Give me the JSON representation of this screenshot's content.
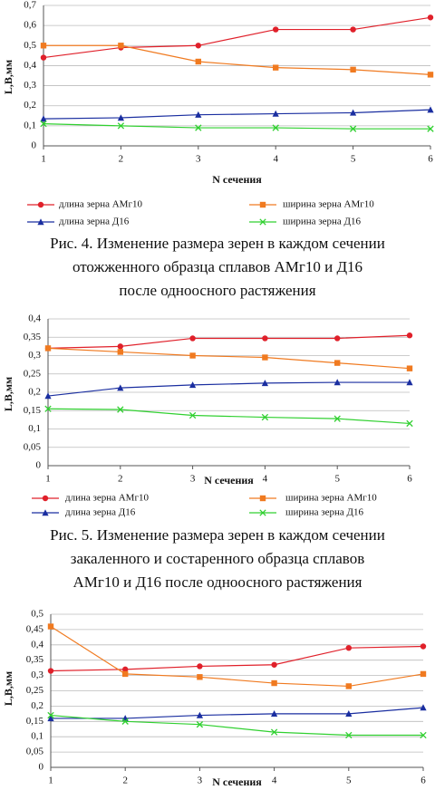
{
  "chart_data": [
    {
      "type": "line",
      "xlabel": "N сечения",
      "ylabel": "L,B,мм",
      "x": [
        1,
        2,
        3,
        4,
        5,
        6
      ],
      "xlim": [
        1,
        6
      ],
      "xticks": [
        1,
        2,
        3,
        4,
        5,
        6
      ],
      "ylim": [
        0,
        0.7
      ],
      "yticks": [
        0,
        {
          "value": 0.1,
          "label": "0,1"
        },
        {
          "value": 0.2,
          "label": "0,2"
        },
        {
          "value": 0.3,
          "label": "0,3"
        },
        {
          "value": 0.4,
          "label": "0,4"
        },
        {
          "value": 0.5,
          "label": "0,5"
        },
        {
          "value": 0.6,
          "label": "0,6"
        },
        {
          "value": 0.7,
          "label": "0,7"
        }
      ],
      "grid": true,
      "series": [
        {
          "name": "длина зерна АМг10",
          "color": "#e0202a",
          "marker": "circle",
          "values": [
            0.44,
            0.49,
            0.5,
            0.58,
            0.58,
            0.64
          ]
        },
        {
          "name": "ширина зерна АМг10",
          "color": "#f07a20",
          "marker": "square",
          "values": [
            0.5,
            0.5,
            0.42,
            0.39,
            0.38,
            0.355
          ]
        },
        {
          "name": "длина зерна Д16",
          "color": "#1a2ea0",
          "marker": "triangle",
          "values": [
            0.135,
            0.14,
            0.155,
            0.16,
            0.165,
            0.18
          ]
        },
        {
          "name": "ширина зерна Д16",
          "color": "#30d030",
          "marker": "x",
          "values": [
            0.11,
            0.1,
            0.09,
            0.09,
            0.085,
            0.085
          ]
        }
      ],
      "caption": [
        "Рис. 4. Изменение размера зерен в каждом сечении",
        "отожженного образца сплавов АМг10 и Д16",
        "после одноосного растяжения"
      ]
    },
    {
      "type": "line",
      "xlabel": "N сечения",
      "ylabel": "L,B,мм",
      "x": [
        1,
        2,
        3,
        4,
        5,
        6
      ],
      "xlim": [
        1,
        6
      ],
      "xticks": [
        1,
        2,
        3,
        4,
        5,
        6
      ],
      "ylim": [
        0,
        0.4
      ],
      "yticks": [
        0,
        {
          "value": 0.05,
          "label": "0,05"
        },
        {
          "value": 0.1,
          "label": "0,1"
        },
        {
          "value": 0.15,
          "label": "0,15"
        },
        {
          "value": 0.2,
          "label": "0,2"
        },
        {
          "value": 0.25,
          "label": "0,25"
        },
        {
          "value": 0.3,
          "label": "0,3"
        },
        {
          "value": 0.35,
          "label": "0,35"
        },
        {
          "value": 0.4,
          "label": "0,4"
        }
      ],
      "grid": true,
      "series": [
        {
          "name": "длина зерна АМг10",
          "color": "#e0202a",
          "marker": "circle",
          "values": [
            0.32,
            0.325,
            0.347,
            0.347,
            0.347,
            0.355
          ]
        },
        {
          "name": "ширина зерна АМг10",
          "color": "#f07a20",
          "marker": "square",
          "values": [
            0.32,
            0.31,
            0.3,
            0.295,
            0.28,
            0.265
          ]
        },
        {
          "name": "длина зерна Д16",
          "color": "#1a2ea0",
          "marker": "triangle",
          "values": [
            0.19,
            0.212,
            0.22,
            0.225,
            0.227,
            0.227
          ]
        },
        {
          "name": "ширина зерна Д16",
          "color": "#30d030",
          "marker": "x",
          "values": [
            0.155,
            0.153,
            0.137,
            0.132,
            0.128,
            0.115
          ]
        }
      ],
      "caption": [
        "Рис. 5. Изменение размера зерен в каждом сечении",
        "закаленного и состаренного образца сплавов",
        "АМг10 и Д16 после одноосного растяжения"
      ]
    },
    {
      "type": "line",
      "xlabel": "N сечения",
      "ylabel": "L,B,мм",
      "x": [
        1,
        2,
        3,
        4,
        5,
        6
      ],
      "xlim": [
        1,
        6
      ],
      "xticks": [
        1,
        2,
        3,
        4,
        5,
        6
      ],
      "ylim": [
        0,
        0.5
      ],
      "yticks": [
        0,
        {
          "value": 0.05,
          "label": "0,05"
        },
        {
          "value": 0.1,
          "label": "0,1"
        },
        {
          "value": 0.15,
          "label": "0,15"
        },
        {
          "value": 0.2,
          "label": "0,2"
        },
        {
          "value": 0.25,
          "label": "0,25"
        },
        {
          "value": 0.3,
          "label": "0,3"
        },
        {
          "value": 0.35,
          "label": "0,35"
        },
        {
          "value": 0.4,
          "label": "0,4"
        },
        {
          "value": 0.45,
          "label": "0,45"
        },
        {
          "value": 0.5,
          "label": "0,5"
        }
      ],
      "grid": true,
      "series": [
        {
          "color": "#e0202a",
          "marker": "circle",
          "values": [
            0.315,
            0.32,
            0.33,
            0.335,
            0.39,
            0.395
          ]
        },
        {
          "color": "#f07a20",
          "marker": "square",
          "values": [
            0.46,
            0.305,
            0.295,
            0.275,
            0.265,
            0.305
          ]
        },
        {
          "color": "#1a2ea0",
          "marker": "triangle",
          "values": [
            0.16,
            0.16,
            0.17,
            0.175,
            0.175,
            0.195
          ]
        },
        {
          "color": "#30d030",
          "marker": "x",
          "values": [
            0.17,
            0.15,
            0.14,
            0.115,
            0.105,
            0.105
          ]
        }
      ]
    }
  ]
}
